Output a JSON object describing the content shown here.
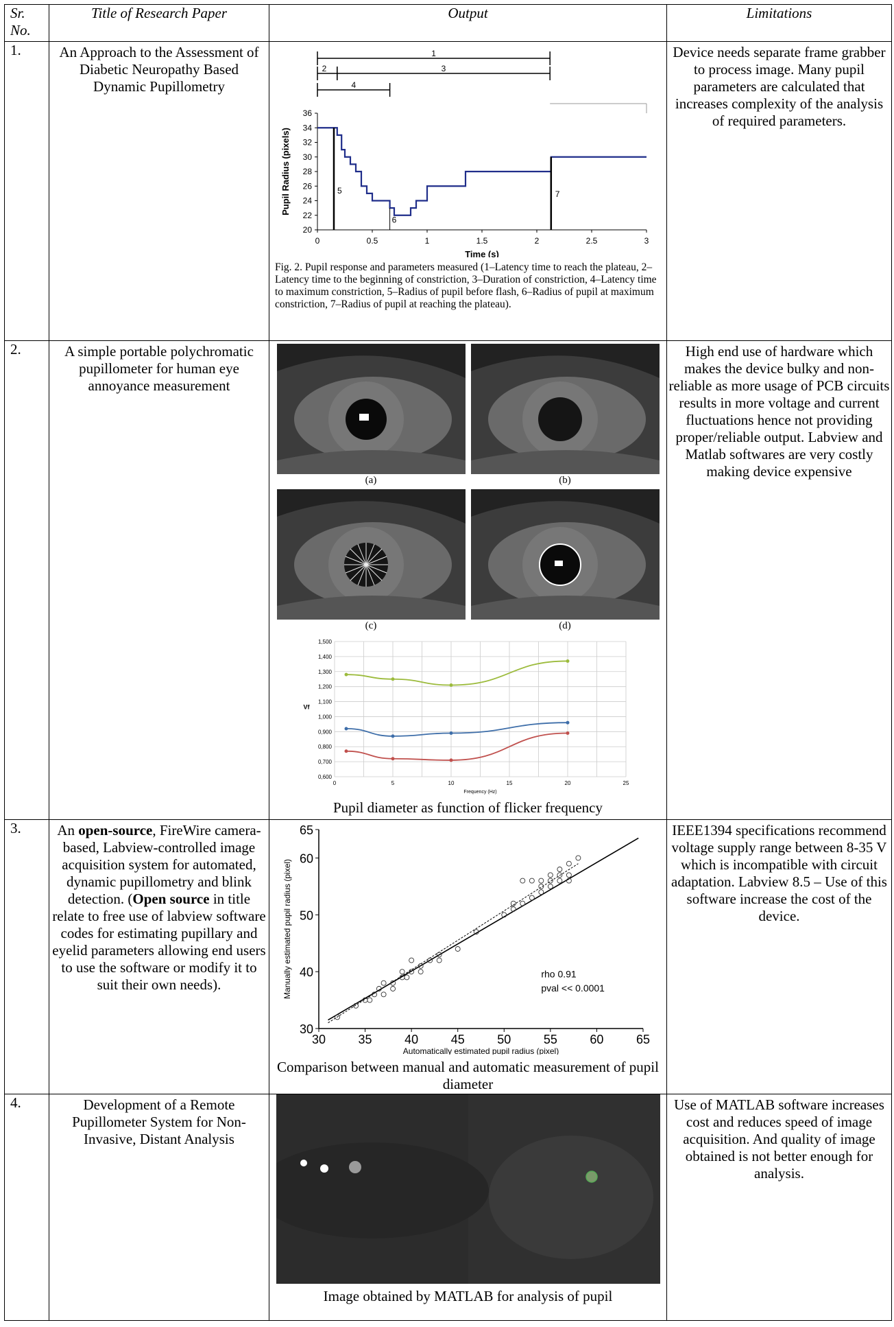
{
  "headers": {
    "sr": "Sr. No.",
    "title": "Title of Research Paper",
    "output": "Output",
    "limitations": "Limitations"
  },
  "rows": [
    {
      "sr": "1.",
      "title": "An Approach to the Assessment of Diabetic Neuropathy Based Dynamic Pupillometry",
      "limitations": "Device needs separate frame grabber to process image. Many pupil parameters are calculated that increases complexity of the analysis of required parameters.",
      "figure_caption": "Fig. 2.  Pupil response and parameters measured (1–Latency time to reach the plateau, 2–Latency time to the beginning of constriction, 3–Duration of constriction, 4–Latency time to maximum constriction, 5–Radius of pupil before flash, 6–Radius of pupil at maximum constriction, 7–Radius of pupil at reaching the plateau)."
    },
    {
      "sr": "2.",
      "title": "A simple portable polychromatic pupillometer for human eye annoyance measurement",
      "limitations": "High end use of hardware which makes the device bulky and non-reliable as more usage of PCB circuits results in more voltage and current fluctuations hence not providing proper/reliable output. Labview and Matlab softwares are very costly making device expensive",
      "image_labels": [
        "(a)",
        "(b)",
        "(c)",
        "(d)"
      ],
      "caption": "Pupil diameter as function of flicker frequency"
    },
    {
      "sr": "3.",
      "title_parts": [
        "An ",
        "open-source",
        ", FireWire camera-based, Labview-controlled image acquisition system for automated, dynamic pupillometry and blink detection. (",
        "Open source",
        " in title relate to free use of labview software codes for estimating pupillary and eyelid parameters allowing end users to use the software or modify it to suit their own needs)."
      ],
      "limitations": "IEEE1394 specifications recommend voltage supply range between 8-35 V which is incompatible with circuit adaptation. Labview 8.5 – Use of this software increase the cost of the device.",
      "caption": "Comparison between manual and automatic measurement of pupil diameter"
    },
    {
      "sr": "4.",
      "title": "Development of a Remote Pupillometer System for Non-Invasive, Distant Analysis",
      "limitations": "Use of MATLAB software increases cost and reduces speed of image acquisition. And quality of image obtained is not better enough for analysis.",
      "caption": "Image obtained by MATLAB for analysis of pupil"
    }
  ],
  "chart_data": [
    {
      "type": "line",
      "xlabel": "Time (s)",
      "ylabel": "Pupil Radius (pixels)",
      "xlim": [
        0,
        3
      ],
      "ylim": [
        20,
        36
      ],
      "xticks": [
        "0",
        "0.5",
        "1",
        "1.5",
        "2",
        "2.5",
        "3"
      ],
      "yticks": [
        "20",
        "22",
        "24",
        "26",
        "28",
        "30",
        "32",
        "34",
        "36"
      ],
      "series": [
        {
          "x": [
            0,
            0.15,
            0.18,
            0.22,
            0.25,
            0.3,
            0.35,
            0.4,
            0.45,
            0.5,
            0.55,
            0.62,
            0.66,
            0.7,
            0.8,
            0.85,
            0.9,
            1.0,
            1.3,
            1.35,
            2.1,
            2.13,
            3.0
          ],
          "y": [
            34,
            34,
            33,
            31,
            30,
            29,
            28,
            26,
            25,
            24,
            24,
            24,
            23,
            22,
            22,
            23,
            24,
            26,
            26,
            28,
            28,
            30,
            30
          ]
        }
      ],
      "annotations": [
        "1",
        "2",
        "3",
        "4",
        "5",
        "6",
        "7"
      ],
      "markers_x": {
        "1": 2.12,
        "2": 0.18,
        "3": 2.12,
        "4": 0.66,
        "5": 0.15,
        "6": 0.66,
        "7": 2.13
      }
    },
    {
      "type": "line",
      "xlabel": "Frequency (Hz)",
      "ylabel": "Vf",
      "xlim": [
        0,
        25
      ],
      "ylim": [
        0.6,
        1.5
      ],
      "xticks": [
        "0",
        "5",
        "10",
        "15",
        "20",
        "25"
      ],
      "yticks": [
        "0,600",
        "0,700",
        "0,800",
        "0,900",
        "1,000",
        "1,100",
        "1,200",
        "1,300",
        "1,400",
        "1,500"
      ],
      "series": [
        {
          "color": "#9cbb3c",
          "x": [
            1,
            5,
            10,
            20
          ],
          "y": [
            1.28,
            1.25,
            1.21,
            1.37
          ]
        },
        {
          "color": "#3e6ea9",
          "x": [
            1,
            5,
            10,
            20
          ],
          "y": [
            0.92,
            0.87,
            0.89,
            0.96
          ]
        },
        {
          "color": "#c0504d",
          "x": [
            1,
            5,
            10,
            20
          ],
          "y": [
            0.77,
            0.72,
            0.71,
            0.89
          ]
        }
      ]
    },
    {
      "type": "scatter",
      "xlabel": "Automatically estimated pupil radius (pixel)",
      "ylabel": "Manually estimated pupil radius (pixel)",
      "xlim": [
        30,
        65
      ],
      "ylim": [
        30,
        65
      ],
      "xticks": [
        "30",
        "35",
        "40",
        "45",
        "50",
        "55",
        "60",
        "65"
      ],
      "yticks": [
        "30",
        "40",
        "50",
        "60",
        "65"
      ],
      "annotation": [
        "rho 0.91",
        "pval << 0.0001"
      ],
      "series": [
        {
          "x": [
            32,
            34,
            35,
            35.5,
            36,
            36.5,
            37,
            37,
            38,
            38,
            39,
            39,
            39.5,
            40,
            40,
            41,
            41,
            42,
            43,
            43,
            45,
            47,
            50,
            51,
            51,
            52,
            52,
            53,
            53,
            54,
            54,
            54,
            55,
            55,
            55,
            56,
            56,
            56,
            57,
            57,
            57,
            58
          ],
          "y": [
            32,
            34,
            35,
            35,
            36,
            37,
            36,
            38,
            38,
            37,
            39,
            40,
            39,
            40,
            42,
            41,
            40,
            42,
            42,
            43,
            44,
            47,
            50,
            51,
            52,
            56,
            52,
            53,
            56,
            54,
            56,
            55,
            55,
            57,
            56,
            56,
            58,
            57,
            57,
            59,
            56,
            60
          ]
        }
      ]
    }
  ]
}
